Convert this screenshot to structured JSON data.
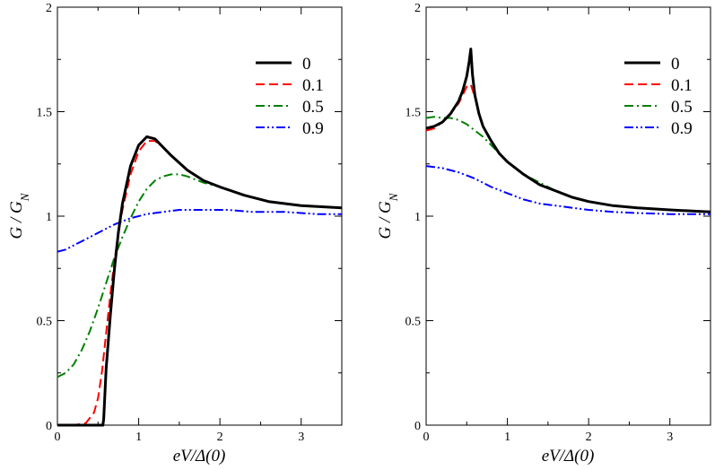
{
  "chart_data": [
    {
      "type": "line",
      "title": "",
      "xlabel": "eV/Δ(0)",
      "ylabel": "G / G_N",
      "xlim": [
        0,
        3.5
      ],
      "ylim": [
        0,
        2
      ],
      "xticks": [
        0,
        1,
        2,
        3
      ],
      "yticks": [
        0,
        0.5,
        1,
        1.5,
        2
      ],
      "x_tick_labels": [
        "0",
        "1",
        "2",
        "3"
      ],
      "y_tick_labels": [
        "0",
        "0.5",
        "1",
        "1.5",
        "2"
      ],
      "legend_position": "top-right",
      "series": [
        {
          "name": "0",
          "color": "#000000",
          "dash": "solid",
          "x": [
            0,
            0.3,
            0.56,
            0.57,
            0.6,
            0.65,
            0.7,
            0.75,
            0.8,
            0.9,
            1.0,
            1.1,
            1.2,
            1.3,
            1.4,
            1.6,
            1.8,
            2.0,
            2.3,
            2.6,
            3.0,
            3.5
          ],
          "y": [
            0,
            0,
            0,
            0.03,
            0.27,
            0.52,
            0.74,
            0.92,
            1.06,
            1.24,
            1.34,
            1.38,
            1.37,
            1.33,
            1.29,
            1.22,
            1.17,
            1.14,
            1.1,
            1.07,
            1.05,
            1.04
          ]
        },
        {
          "name": "0.1",
          "color": "#ff0000",
          "dash": "dashed",
          "x": [
            0,
            0.2,
            0.35,
            0.45,
            0.5,
            0.55,
            0.6,
            0.65,
            0.7,
            0.75,
            0.8,
            0.9,
            1.0,
            1.1,
            1.2,
            1.3,
            1.4,
            1.6,
            1.8,
            2.0,
            2.3,
            2.6,
            3.0,
            3.5
          ],
          "y": [
            0,
            0,
            0.01,
            0.06,
            0.13,
            0.26,
            0.44,
            0.62,
            0.78,
            0.92,
            1.03,
            1.2,
            1.31,
            1.36,
            1.36,
            1.33,
            1.29,
            1.22,
            1.17,
            1.14,
            1.1,
            1.07,
            1.05,
            1.04
          ]
        },
        {
          "name": "0.5",
          "color": "#008000",
          "dash": "dashdot",
          "x": [
            0,
            0.1,
            0.2,
            0.3,
            0.4,
            0.5,
            0.6,
            0.7,
            0.8,
            0.9,
            1.0,
            1.1,
            1.2,
            1.3,
            1.4,
            1.5,
            1.6,
            1.8,
            2.0,
            2.3,
            2.6,
            3.0,
            3.5
          ],
          "y": [
            0.23,
            0.25,
            0.29,
            0.36,
            0.45,
            0.56,
            0.68,
            0.8,
            0.9,
            0.99,
            1.07,
            1.13,
            1.17,
            1.19,
            1.2,
            1.2,
            1.19,
            1.16,
            1.14,
            1.1,
            1.07,
            1.05,
            1.04
          ]
        },
        {
          "name": "0.9",
          "color": "#0000ff",
          "dash": "dashdotdot",
          "x": [
            0,
            0.1,
            0.2,
            0.3,
            0.5,
            0.7,
            0.9,
            1.1,
            1.3,
            1.5,
            1.7,
            1.9,
            2.1,
            2.4,
            2.8,
            3.2,
            3.5
          ],
          "y": [
            0.83,
            0.84,
            0.86,
            0.88,
            0.92,
            0.96,
            0.99,
            1.01,
            1.02,
            1.03,
            1.03,
            1.03,
            1.03,
            1.02,
            1.02,
            1.01,
            1.01
          ]
        }
      ]
    },
    {
      "type": "line",
      "title": "",
      "xlabel": "eV/Δ(0)",
      "ylabel": "G / G_N",
      "xlim": [
        0,
        3.5
      ],
      "ylim": [
        0,
        2
      ],
      "xticks": [
        0,
        1,
        2,
        3
      ],
      "yticks": [
        0,
        0.5,
        1,
        1.5,
        2
      ],
      "x_tick_labels": [
        "0",
        "1",
        "2",
        "3"
      ],
      "y_tick_labels": [
        "0",
        "0.5",
        "1",
        "1.5",
        "2"
      ],
      "legend_position": "top-right",
      "series": [
        {
          "name": "0",
          "color": "#000000",
          "dash": "solid",
          "x": [
            0,
            0.1,
            0.2,
            0.3,
            0.4,
            0.45,
            0.5,
            0.53,
            0.55,
            0.57,
            0.6,
            0.65,
            0.7,
            0.8,
            0.9,
            1.0,
            1.2,
            1.4,
            1.6,
            1.8,
            2.0,
            2.3,
            2.6,
            3.0,
            3.5
          ],
          "y": [
            1.42,
            1.43,
            1.45,
            1.49,
            1.55,
            1.6,
            1.67,
            1.74,
            1.8,
            1.68,
            1.58,
            1.49,
            1.43,
            1.36,
            1.3,
            1.26,
            1.2,
            1.15,
            1.12,
            1.09,
            1.07,
            1.05,
            1.04,
            1.03,
            1.02
          ]
        },
        {
          "name": "0.1",
          "color": "#ff0000",
          "dash": "dashed",
          "x": [
            0,
            0.1,
            0.2,
            0.3,
            0.4,
            0.45,
            0.5,
            0.55,
            0.6,
            0.65,
            0.7,
            0.8,
            0.9,
            1.0,
            1.2,
            1.4,
            1.6,
            1.8,
            2.0,
            2.3,
            2.6,
            3.0,
            3.5
          ],
          "y": [
            1.41,
            1.42,
            1.45,
            1.49,
            1.54,
            1.58,
            1.62,
            1.63,
            1.57,
            1.49,
            1.43,
            1.36,
            1.3,
            1.26,
            1.2,
            1.15,
            1.12,
            1.09,
            1.07,
            1.05,
            1.04,
            1.03,
            1.02
          ]
        },
        {
          "name": "0.5",
          "color": "#008000",
          "dash": "dashdot",
          "x": [
            0,
            0.1,
            0.2,
            0.3,
            0.4,
            0.5,
            0.6,
            0.7,
            0.8,
            0.9,
            1.0,
            1.2,
            1.4,
            1.6,
            1.8,
            2.0,
            2.3,
            2.6,
            3.0,
            3.5
          ],
          "y": [
            1.47,
            1.475,
            1.47,
            1.47,
            1.46,
            1.44,
            1.41,
            1.38,
            1.34,
            1.3,
            1.26,
            1.2,
            1.16,
            1.12,
            1.09,
            1.07,
            1.05,
            1.04,
            1.03,
            1.02
          ]
        },
        {
          "name": "0.9",
          "color": "#0000ff",
          "dash": "dashdotdot",
          "x": [
            0,
            0.2,
            0.4,
            0.6,
            0.8,
            1.0,
            1.2,
            1.4,
            1.6,
            1.8,
            2.0,
            2.3,
            2.6,
            3.0,
            3.5
          ],
          "y": [
            1.24,
            1.23,
            1.21,
            1.18,
            1.14,
            1.11,
            1.08,
            1.06,
            1.05,
            1.04,
            1.03,
            1.02,
            1.015,
            1.01,
            1.01
          ]
        }
      ]
    }
  ]
}
